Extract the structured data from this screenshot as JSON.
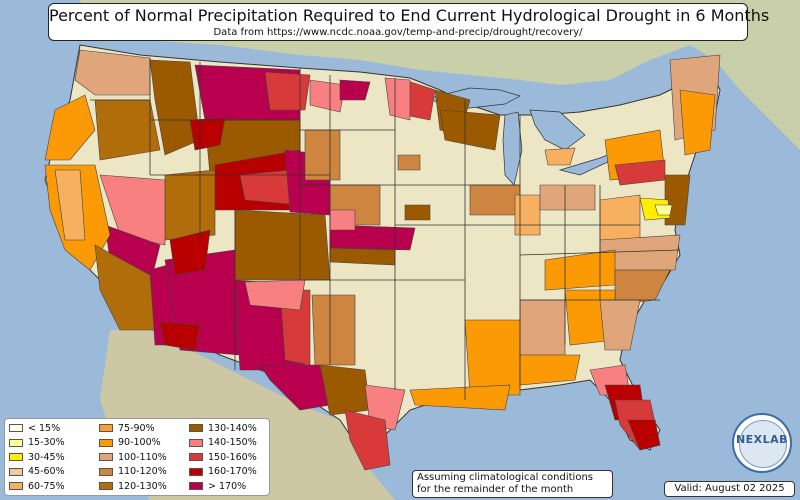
{
  "title": "Percent of Normal Precipitation Required to End Current Hydrological Drought in 6 Months",
  "subtitle": "Data from https://www.ncdc.noaa.gov/temp-and-precip/drought/recovery/",
  "note": "Assuming climatological conditions for the remainder of the month",
  "valid": "Valid: August 02 2025",
  "logo_text": "NEXLAB",
  "colors": {
    "ocean": "#9bb9d9",
    "land": "#ece6c4",
    "state_border": "#333333",
    "lake": "#9bb9d9"
  },
  "legend": [
    {
      "label": "< 15%",
      "color": "#ffffe6"
    },
    {
      "label": "15-30%",
      "color": "#ffff99"
    },
    {
      "label": "30-45%",
      "color": "#ffee00"
    },
    {
      "label": "45-60%",
      "color": "#f5c896"
    },
    {
      "label": "60-75%",
      "color": "#f7b060"
    },
    {
      "label": "75-90%",
      "color": "#fba030"
    },
    {
      "label": "90-100%",
      "color": "#fc9a05"
    },
    {
      "label": "100-110%",
      "color": "#e0a57a"
    },
    {
      "label": "110-120%",
      "color": "#cd853f"
    },
    {
      "label": "120-130%",
      "color": "#b06d0a"
    },
    {
      "label": "130-140%",
      "color": "#9c5a00"
    },
    {
      "label": "140-150%",
      "color": "#f88080"
    },
    {
      "label": "150-160%",
      "color": "#d83a3a"
    },
    {
      "label": "160-170%",
      "color": "#b80000"
    },
    {
      "label": "> 170%",
      "color": "#b8004f"
    }
  ]
}
